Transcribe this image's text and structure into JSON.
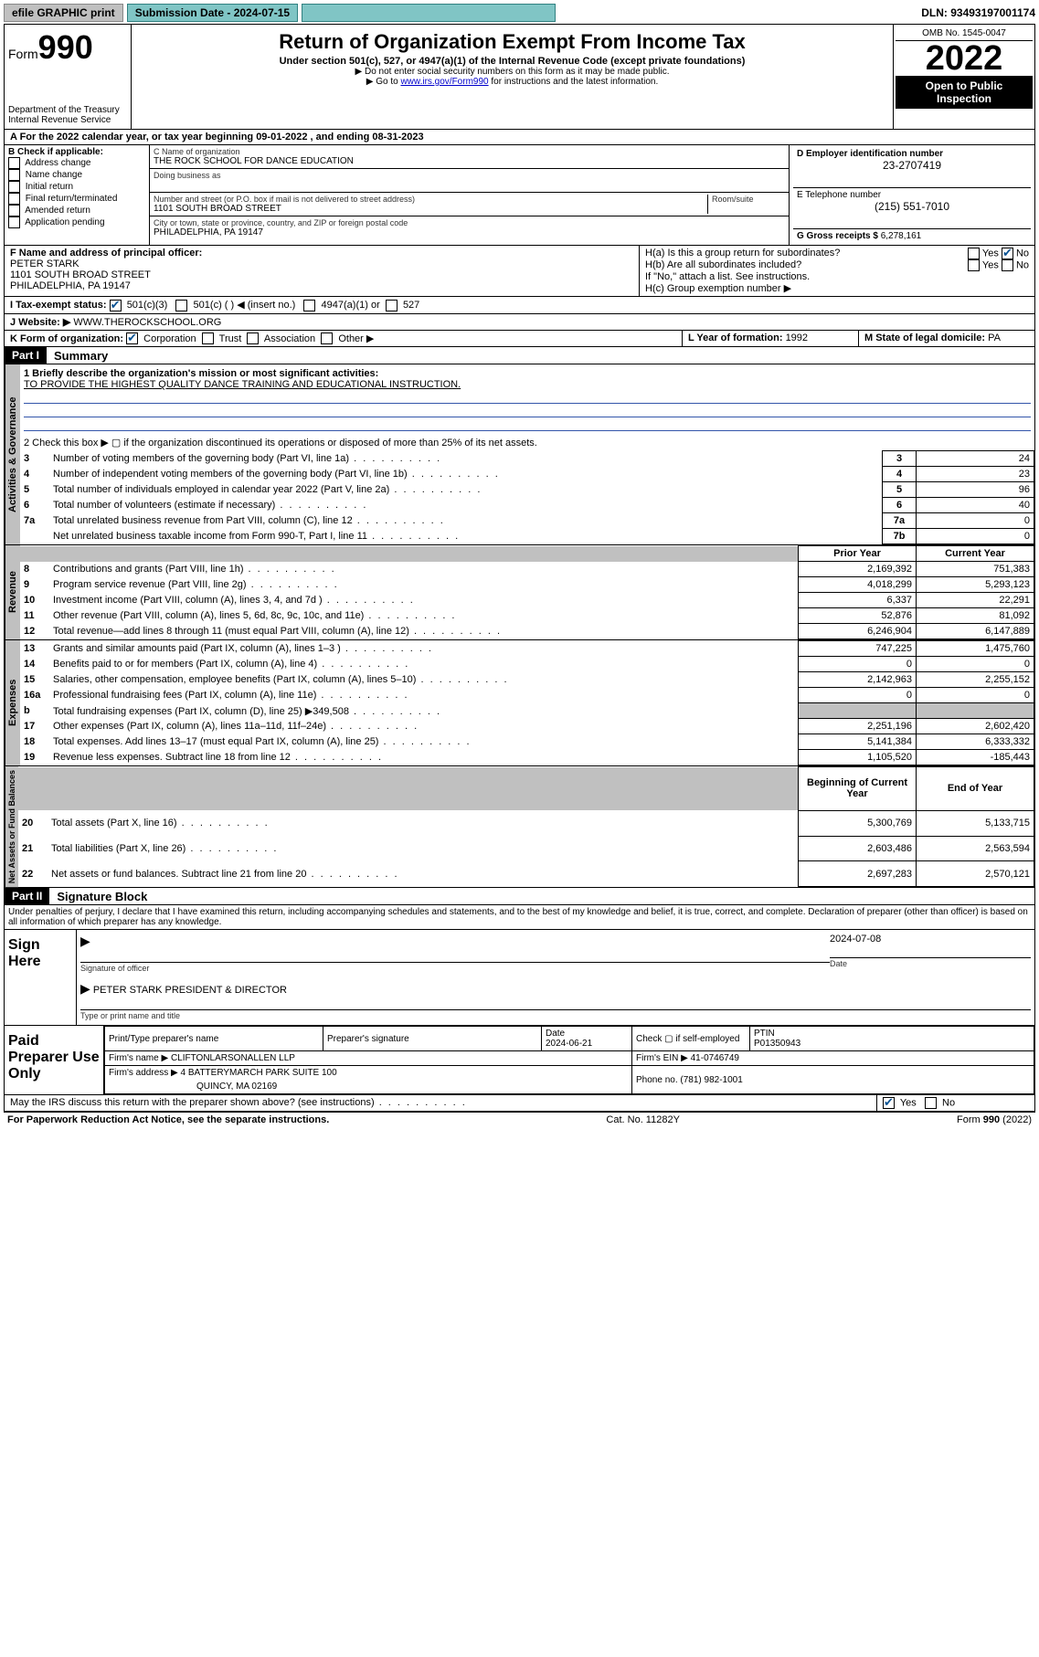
{
  "topbar": {
    "efile": "efile GRAPHIC print",
    "submission_label": "Submission Date - 2024-07-15",
    "dln": "DLN: 93493197001174"
  },
  "header": {
    "form_label": "Form",
    "form_num": "990",
    "dept": "Department of the Treasury",
    "irs": "Internal Revenue Service",
    "title": "Return of Organization Exempt From Income Tax",
    "subtitle": "Under section 501(c), 527, or 4947(a)(1) of the Internal Revenue Code (except private foundations)",
    "note1": "▶ Do not enter social security numbers on this form as it may be made public.",
    "note2_pre": "▶ Go to ",
    "note2_link": "www.irs.gov/Form990",
    "note2_post": " for instructions and the latest information.",
    "omb": "OMB No. 1545-0047",
    "year": "2022",
    "inspection": "Open to Public Inspection"
  },
  "rowA": "A For the 2022 calendar year, or tax year beginning 09-01-2022   , and ending 08-31-2023",
  "boxB": {
    "label": "B Check if applicable:",
    "items": [
      "Address change",
      "Name change",
      "Initial return",
      "Final return/terminated",
      "Amended return",
      "Application pending"
    ]
  },
  "boxC": {
    "name_label": "C Name of organization",
    "name": "THE ROCK SCHOOL FOR DANCE EDUCATION",
    "dba_label": "Doing business as",
    "addr_label": "Number and street (or P.O. box if mail is not delivered to street address)",
    "room_label": "Room/suite",
    "addr": "1101 SOUTH BROAD STREET",
    "city_label": "City or town, state or province, country, and ZIP or foreign postal code",
    "city": "PHILADELPHIA, PA  19147"
  },
  "boxD": {
    "label": "D Employer identification number",
    "ein": "23-2707419",
    "tel_label": "E Telephone number",
    "tel": "(215) 551-7010",
    "gross_label": "G Gross receipts $",
    "gross": "6,278,161"
  },
  "rowF": {
    "label": "F  Name and address of principal officer:",
    "name": "PETER STARK",
    "addr1": "1101 SOUTH BROAD STREET",
    "addr2": "PHILADELPHIA, PA  19147"
  },
  "boxH": {
    "ha": "H(a)  Is this a group return for subordinates?",
    "hb": "H(b)  Are all subordinates included?",
    "hb_note": "If \"No,\" attach a list. See instructions.",
    "hc": "H(c)  Group exemption number ▶",
    "yes": "Yes",
    "no": "No"
  },
  "rowI": {
    "label": "I    Tax-exempt status:",
    "opts": [
      "501(c)(3)",
      "501(c) (   ) ◀ (insert no.)",
      "4947(a)(1) or",
      "527"
    ]
  },
  "rowJ": {
    "label": "J   Website: ▶ ",
    "val": "WWW.THEROCKSCHOOL.ORG"
  },
  "rowK": {
    "label": "K Form of organization:",
    "opts": [
      "Corporation",
      "Trust",
      "Association",
      "Other ▶"
    ]
  },
  "rowL": {
    "label": "L Year of formation: ",
    "val": "1992"
  },
  "rowM": {
    "label": "M State of legal domicile: ",
    "val": "PA"
  },
  "part1": "Part I",
  "part1_title": "Summary",
  "summary": {
    "q1_label": "1   Briefly describe the organization's mission or most significant activities:",
    "q1_val": "TO PROVIDE THE HIGHEST QUALITY DANCE TRAINING AND EDUCATIONAL INSTRUCTION.",
    "q2": "2    Check this box ▶ ▢  if the organization discontinued its operations or disposed of more than 25% of its net assets.",
    "rows_top": [
      {
        "n": "3",
        "t": "Number of voting members of the governing body (Part VI, line 1a)",
        "box": "3",
        "v": "24"
      },
      {
        "n": "4",
        "t": "Number of independent voting members of the governing body (Part VI, line 1b)",
        "box": "4",
        "v": "23"
      },
      {
        "n": "5",
        "t": "Total number of individuals employed in calendar year 2022 (Part V, line 2a)",
        "box": "5",
        "v": "96"
      },
      {
        "n": "6",
        "t": "Total number of volunteers (estimate if necessary)",
        "box": "6",
        "v": "40"
      },
      {
        "n": "7a",
        "t": "Total unrelated business revenue from Part VIII, column (C), line 12",
        "box": "7a",
        "v": "0"
      },
      {
        "n": "",
        "t": "Net unrelated business taxable income from Form 990-T, Part I, line 11",
        "box": "7b",
        "v": "0"
      }
    ],
    "col_prior": "Prior Year",
    "col_current": "Current Year",
    "revenue": [
      {
        "n": "8",
        "t": "Contributions and grants (Part VIII, line 1h)",
        "p": "2,169,392",
        "c": "751,383"
      },
      {
        "n": "9",
        "t": "Program service revenue (Part VIII, line 2g)",
        "p": "4,018,299",
        "c": "5,293,123"
      },
      {
        "n": "10",
        "t": "Investment income (Part VIII, column (A), lines 3, 4, and 7d )",
        "p": "6,337",
        "c": "22,291"
      },
      {
        "n": "11",
        "t": "Other revenue (Part VIII, column (A), lines 5, 6d, 8c, 9c, 10c, and 11e)",
        "p": "52,876",
        "c": "81,092"
      },
      {
        "n": "12",
        "t": "Total revenue—add lines 8 through 11 (must equal Part VIII, column (A), line 12)",
        "p": "6,246,904",
        "c": "6,147,889"
      }
    ],
    "expenses": [
      {
        "n": "13",
        "t": "Grants and similar amounts paid (Part IX, column (A), lines 1–3 )",
        "p": "747,225",
        "c": "1,475,760"
      },
      {
        "n": "14",
        "t": "Benefits paid to or for members (Part IX, column (A), line 4)",
        "p": "0",
        "c": "0"
      },
      {
        "n": "15",
        "t": "Salaries, other compensation, employee benefits (Part IX, column (A), lines 5–10)",
        "p": "2,142,963",
        "c": "2,255,152"
      },
      {
        "n": "16a",
        "t": "Professional fundraising fees (Part IX, column (A), line 11e)",
        "p": "0",
        "c": "0"
      },
      {
        "n": "b",
        "t": "Total fundraising expenses (Part IX, column (D), line 25) ▶349,508",
        "p": "",
        "c": "",
        "shade": true
      },
      {
        "n": "17",
        "t": "Other expenses (Part IX, column (A), lines 11a–11d, 11f–24e)",
        "p": "2,251,196",
        "c": "2,602,420"
      },
      {
        "n": "18",
        "t": "Total expenses. Add lines 13–17 (must equal Part IX, column (A), line 25)",
        "p": "5,141,384",
        "c": "6,333,332"
      },
      {
        "n": "19",
        "t": "Revenue less expenses. Subtract line 18 from line 12",
        "p": "1,105,520",
        "c": "-185,443"
      }
    ],
    "col_begin": "Beginning of Current Year",
    "col_end": "End of Year",
    "netassets": [
      {
        "n": "20",
        "t": "Total assets (Part X, line 16)",
        "p": "5,300,769",
        "c": "5,133,715"
      },
      {
        "n": "21",
        "t": "Total liabilities (Part X, line 26)",
        "p": "2,603,486",
        "c": "2,563,594"
      },
      {
        "n": "22",
        "t": "Net assets or fund balances. Subtract line 21 from line 20",
        "p": "2,697,283",
        "c": "2,570,121"
      }
    ]
  },
  "vtabs": {
    "ag": "Activities & Governance",
    "rev": "Revenue",
    "exp": "Expenses",
    "na": "Net Assets or Fund Balances"
  },
  "part2": "Part II",
  "part2_title": "Signature Block",
  "sig_decl": "Under penalties of perjury, I declare that I have examined this return, including accompanying schedules and statements, and to the best of my knowledge and belief, it is true, correct, and complete. Declaration of preparer (other than officer) is based on all information of which preparer has any knowledge.",
  "sign": {
    "here": "Sign Here",
    "sig_officer": "Signature of officer",
    "date": "Date",
    "date_val": "2024-07-08",
    "name": "PETER STARK PRESIDENT & DIRECTOR",
    "name_label": "Type or print name and title"
  },
  "preparer": {
    "label": "Paid Preparer Use Only",
    "col1": "Print/Type preparer's name",
    "col2": "Preparer's signature",
    "col3": "Date",
    "date": "2024-06-21",
    "check_label": "Check ▢ if self-employed",
    "ptin_label": "PTIN",
    "ptin": "P01350943",
    "firm_name_label": "Firm's name    ▶",
    "firm_name": "CLIFTONLARSONALLEN LLP",
    "firm_ein_label": "Firm's EIN ▶",
    "firm_ein": "41-0746749",
    "firm_addr_label": "Firm's address ▶",
    "firm_addr": "4 BATTERYMARCH PARK SUITE 100",
    "firm_city": "QUINCY, MA  02169",
    "phone_label": "Phone no.",
    "phone": "(781) 982-1001"
  },
  "discuss": "May the IRS discuss this return with the preparer shown above? (see instructions)",
  "footer": {
    "pra": "For Paperwork Reduction Act Notice, see the separate instructions.",
    "cat": "Cat. No. 11282Y",
    "form": "Form 990 (2022)"
  }
}
